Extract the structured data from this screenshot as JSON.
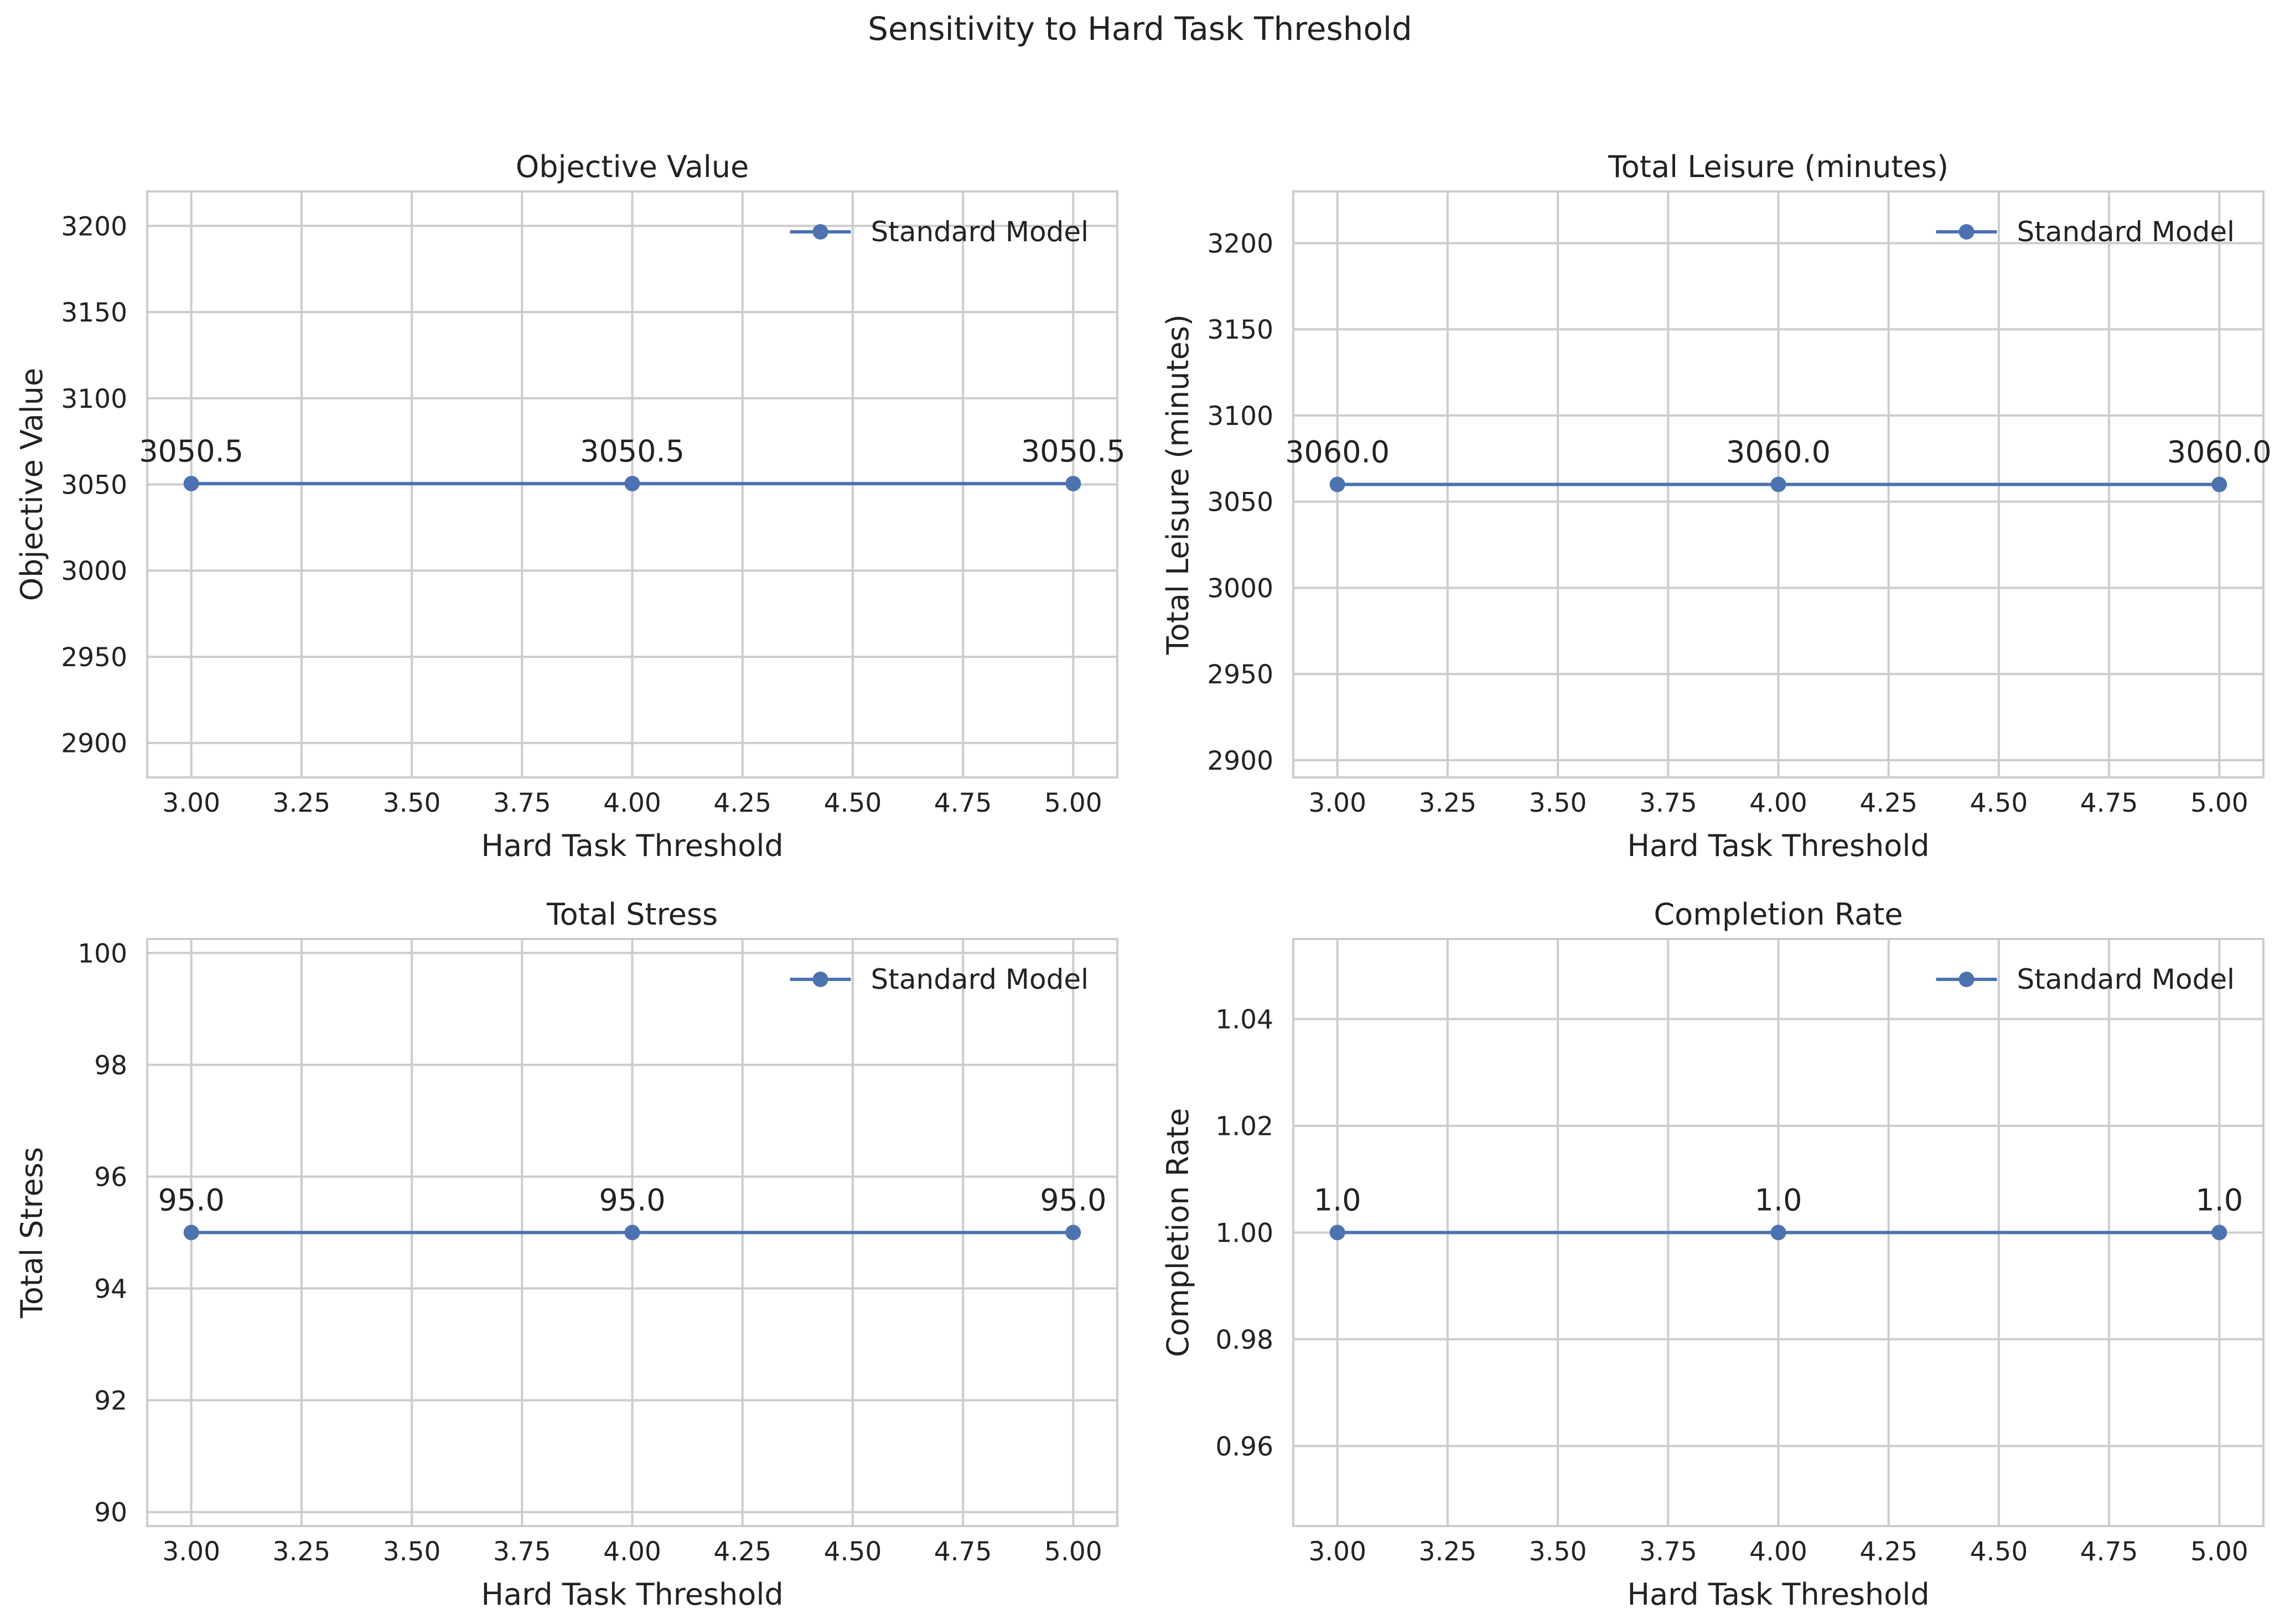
{
  "chart_data": {
    "suptitle": "Sensitivity to Hard Task Threshold",
    "colors": {
      "series": "#4c72b0",
      "grid": "#cccccc",
      "spine": "#cccccc"
    },
    "panels": [
      {
        "type": "line",
        "title": "Objective Value",
        "xlabel": "Hard Task Threshold",
        "ylabel": "Objective Value",
        "xlim": [
          2.9,
          5.1
        ],
        "ylim": [
          2880,
          3220
        ],
        "xticks": [
          "3.00",
          "3.25",
          "3.50",
          "3.75",
          "4.00",
          "4.25",
          "4.50",
          "4.75",
          "5.00"
        ],
        "yticks": [
          "2900",
          "2950",
          "3000",
          "3050",
          "3100",
          "3150",
          "3200"
        ],
        "legend": "top-right",
        "grid": true,
        "series": [
          {
            "name": "Standard Model",
            "x": [
              3,
              4,
              5
            ],
            "y": [
              3050.5,
              3050.5,
              3050.5
            ],
            "labels": [
              "3050.5",
              "3050.5",
              "3050.5"
            ]
          }
        ]
      },
      {
        "type": "line",
        "title": "Total Leisure (minutes)",
        "xlabel": "Hard Task Threshold",
        "ylabel": "Total Leisure (minutes)",
        "xlim": [
          2.9,
          5.1
        ],
        "ylim": [
          2890,
          3230
        ],
        "xticks": [
          "3.00",
          "3.25",
          "3.50",
          "3.75",
          "4.00",
          "4.25",
          "4.50",
          "4.75",
          "5.00"
        ],
        "yticks": [
          "2900",
          "2950",
          "3000",
          "3050",
          "3100",
          "3150",
          "3200"
        ],
        "legend": "top-right",
        "grid": true,
        "series": [
          {
            "name": "Standard Model",
            "x": [
              3,
              4,
              5
            ],
            "y": [
              3060.0,
              3060.0,
              3060.0
            ],
            "labels": [
              "3060.0",
              "3060.0",
              "3060.0"
            ]
          }
        ]
      },
      {
        "type": "line",
        "title": "Total Stress",
        "xlabel": "Hard Task Threshold",
        "ylabel": "Total Stress",
        "xlim": [
          2.9,
          5.1
        ],
        "ylim": [
          89.75,
          100.25
        ],
        "xticks": [
          "3.00",
          "3.25",
          "3.50",
          "3.75",
          "4.00",
          "4.25",
          "4.50",
          "4.75",
          "5.00"
        ],
        "yticks": [
          "90",
          "92",
          "94",
          "96",
          "98",
          "100"
        ],
        "legend": "top-right",
        "grid": true,
        "series": [
          {
            "name": "Standard Model",
            "x": [
              3,
              4,
              5
            ],
            "y": [
              95.0,
              95.0,
              95.0
            ],
            "labels": [
              "95.0",
              "95.0",
              "95.0"
            ]
          }
        ]
      },
      {
        "type": "line",
        "title": "Completion Rate",
        "xlabel": "Hard Task Threshold",
        "ylabel": "Completion Rate",
        "xlim": [
          2.9,
          5.1
        ],
        "ylim": [
          0.945,
          1.055
        ],
        "xticks": [
          "3.00",
          "3.25",
          "3.50",
          "3.75",
          "4.00",
          "4.25",
          "4.50",
          "4.75",
          "5.00"
        ],
        "yticks": [
          "0.96",
          "0.98",
          "1.00",
          "1.02",
          "1.04"
        ],
        "legend": "top-right",
        "grid": true,
        "series": [
          {
            "name": "Standard Model",
            "x": [
              3,
              4,
              5
            ],
            "y": [
              1.0,
              1.0,
              1.0
            ],
            "labels": [
              "1.0",
              "1.0",
              "1.0"
            ]
          }
        ]
      }
    ]
  }
}
